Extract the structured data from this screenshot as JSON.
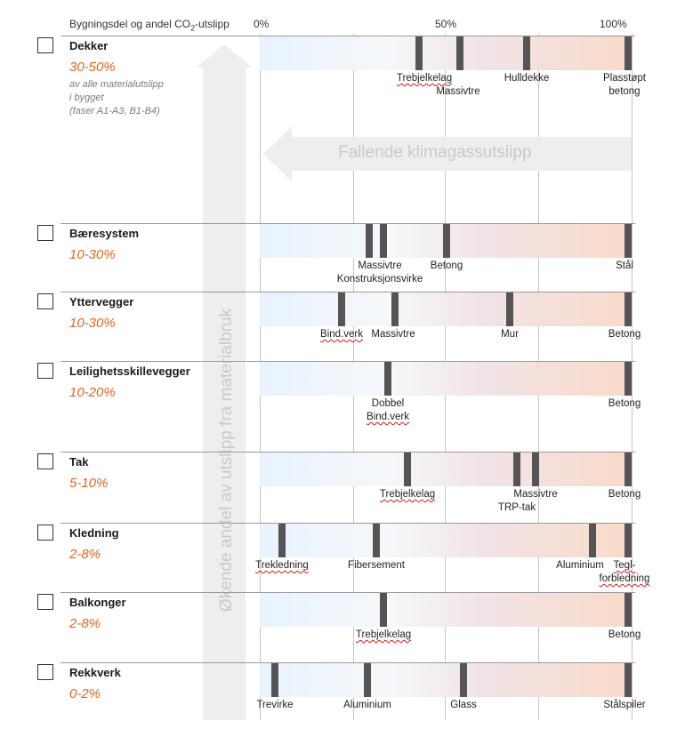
{
  "header": {
    "title_prefix": "Bygningsdel og andel CO",
    "title_sub": "2",
    "title_suffix": "-utslipp",
    "ticks": [
      "0%",
      "50%",
      "100%"
    ]
  },
  "arrows": {
    "vertical_label": "Økende andel av utslipp fra materialbruk",
    "horizontal_label": "Fallende klimagassutslipp"
  },
  "dekker_note": [
    "av alle materialutslipp",
    "i bygget",
    "(faser A1-A3, B1-B4)"
  ],
  "categories": [
    {
      "key": "dekker",
      "name": "Dekker",
      "pct": "30-50%",
      "markers": [
        0.43,
        0.54,
        0.72,
        0.995
      ],
      "labels": [
        {
          "lines": [
            "Trebjelkelag"
          ],
          "pos": 0.445,
          "row": 0,
          "spell": true
        },
        {
          "lines": [
            "Massivtre"
          ],
          "pos": 0.535,
          "row": 1,
          "spell": false
        },
        {
          "lines": [
            "Hulldekke"
          ],
          "pos": 0.72,
          "row": 0,
          "spell": false
        },
        {
          "lines": [
            "Plasstøpt",
            "betong"
          ],
          "pos": 0.985,
          "row": 0,
          "spell": false
        }
      ]
    },
    {
      "key": "baeresystem",
      "name": "Bæresystem",
      "pct": "10-30%",
      "markers": [
        0.295,
        0.335,
        0.505,
        0.995
      ],
      "labels": [
        {
          "lines": [
            "Massivtre"
          ],
          "pos": 0.325,
          "row": 0,
          "spell": false
        },
        {
          "lines": [
            "Konstruksjonsvirke"
          ],
          "pos": 0.325,
          "row": 1,
          "spell": false
        },
        {
          "lines": [
            "Betong"
          ],
          "pos": 0.505,
          "row": 0,
          "spell": false
        },
        {
          "lines": [
            "Stål"
          ],
          "pos": 0.985,
          "row": 0,
          "spell": false
        }
      ]
    },
    {
      "key": "yttervegger",
      "name": "Yttervegger",
      "pct": "10-30%",
      "markers": [
        0.22,
        0.365,
        0.675,
        0.995
      ],
      "labels": [
        {
          "lines": [
            "Bind.verk"
          ],
          "pos": 0.22,
          "row": 0,
          "spell": true
        },
        {
          "lines": [
            "Massivtre"
          ],
          "pos": 0.36,
          "row": 0,
          "spell": false
        },
        {
          "lines": [
            "Mur"
          ],
          "pos": 0.675,
          "row": 0,
          "spell": false
        },
        {
          "lines": [
            "Betong"
          ],
          "pos": 0.985,
          "row": 0,
          "spell": false
        }
      ]
    },
    {
      "key": "leilighetsskillevegger",
      "name": "Leilighetsskillevegger",
      "pct": "10-20%",
      "markers": [
        0.345,
        0.995
      ],
      "labels": [
        {
          "lines": [
            "Dobbel"
          ],
          "pos": 0.345,
          "row": 0,
          "spell": false
        },
        {
          "lines": [
            "Bind.verk"
          ],
          "pos": 0.345,
          "row": 1,
          "spell": true
        },
        {
          "lines": [
            "Betong"
          ],
          "pos": 0.985,
          "row": 0,
          "spell": false
        }
      ]
    },
    {
      "key": "tak",
      "name": "Tak",
      "pct": "5-10%",
      "markers": [
        0.4,
        0.695,
        0.745,
        0.995
      ],
      "labels": [
        {
          "lines": [
            "Trebjelkelag"
          ],
          "pos": 0.4,
          "row": 0,
          "spell": true
        },
        {
          "lines": [
            "Massivtre"
          ],
          "pos": 0.745,
          "row": 0,
          "spell": false
        },
        {
          "lines": [
            "TRP-tak"
          ],
          "pos": 0.695,
          "row": 1,
          "spell": false
        },
        {
          "lines": [
            "Betong"
          ],
          "pos": 0.985,
          "row": 0,
          "spell": false
        }
      ]
    },
    {
      "key": "kledning",
      "name": "Kledning",
      "pct": "2-8%",
      "markers": [
        0.06,
        0.315,
        0.9,
        0.995
      ],
      "labels": [
        {
          "lines": [
            "Trekledning"
          ],
          "pos": 0.06,
          "row": 0,
          "spell": true
        },
        {
          "lines": [
            "Fibersement"
          ],
          "pos": 0.315,
          "row": 0,
          "spell": false
        },
        {
          "lines": [
            "Aluminium"
          ],
          "pos": 0.865,
          "row": 0,
          "spell": false
        },
        {
          "lines": [
            "Tegl-",
            "forbledning"
          ],
          "pos": 0.985,
          "row": 0,
          "spell": true
        }
      ]
    },
    {
      "key": "balkonger",
      "name": "Balkonger",
      "pct": "2-8%",
      "markers": [
        0.335,
        0.995
      ],
      "labels": [
        {
          "lines": [
            "Trebjelkelag"
          ],
          "pos": 0.335,
          "row": 0,
          "spell": true
        },
        {
          "lines": [
            "Betong"
          ],
          "pos": 0.985,
          "row": 0,
          "spell": false
        }
      ]
    },
    {
      "key": "rekkverk",
      "name": "Rekkverk",
      "pct": "0-2%",
      "markers": [
        0.04,
        0.29,
        0.55,
        0.995
      ],
      "labels": [
        {
          "lines": [
            "Trevirke"
          ],
          "pos": 0.04,
          "row": 0,
          "spell": false
        },
        {
          "lines": [
            "Aluminium"
          ],
          "pos": 0.29,
          "row": 0,
          "spell": false
        },
        {
          "lines": [
            "Glass"
          ],
          "pos": 0.55,
          "row": 0,
          "spell": false
        },
        {
          "lines": [
            "Stålspiler"
          ],
          "pos": 0.985,
          "row": 0,
          "spell": false
        }
      ]
    }
  ],
  "colors": {
    "pct_text": "#e0651b",
    "marker": "#555555",
    "band_low": "#e8f3fc",
    "band_high": "#f9dac9",
    "arrow": "#eeeeee",
    "arrow_text": "#c9c9c9",
    "spell_underline": "#d11a1a"
  }
}
